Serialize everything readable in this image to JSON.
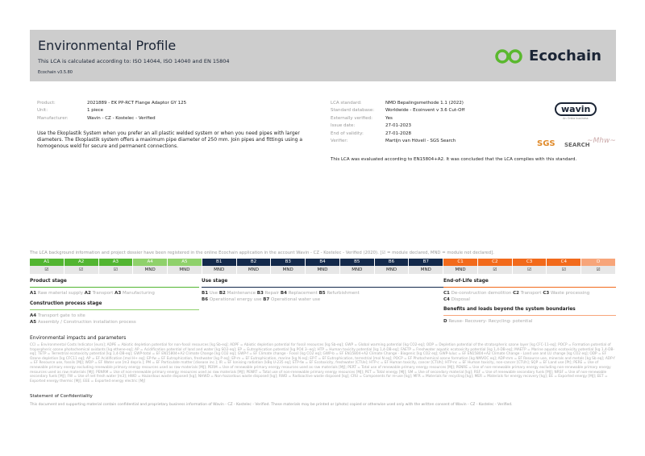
{
  "header": {
    "title": "Environmental Profile",
    "subtitle": "This LCA is calculated according to: ISO 14044, ISO 14040 and EN 15804",
    "version": "Ecochain v3.5.80",
    "logo": "Ecochain"
  },
  "product": {
    "rows": [
      {
        "label": "Product:",
        "value": "2021889 - EK PP-RCT Flange Adaptor GY 125"
      },
      {
        "label": "Unit:",
        "value": "1 piece"
      },
      {
        "label": "Manufacturer:",
        "value": "Wavin - CZ - Kostelec - Verified"
      }
    ],
    "description": "Use the Ekoplastik System when you prefer an all plastic welded system or when you need pipes with larger diameters. The Ekoplastik system offers a maximum pipe diameter of 250 mm. Join pipes and fittings using a homogenous weld for secure and permanent connections."
  },
  "lca": {
    "rows": [
      {
        "label": "LCA standard:",
        "value": "NMD Bepalingsmethode 1.1 (2022)"
      },
      {
        "label": "Standard database:",
        "value": "Worldwide - Ecoinvent v 3.6 Cut-Off"
      },
      {
        "label": "Externally verified:",
        "value": "Yes"
      },
      {
        "label": "Issue date:",
        "value": "27-01-2023"
      },
      {
        "label": "End of validity:",
        "value": "27-01-2028"
      },
      {
        "label": "Verifier:",
        "value": "Martijn van Hövell - SGS Search"
      }
    ],
    "conclusion": "This LCA was evaluated according to EN15804+A2. It was concluded that the LCA complies with this standard."
  },
  "logos": {
    "wavin": "wavin",
    "wavin_sub": "An Orbia business",
    "sgs": "SGS",
    "search": "SEARCH"
  },
  "note": "The LCA background information and project dossier have been registered in the online Ecochain application in the account Wavin - CZ - Kostelec - Verified (2020). [☑ = module declared, MND = module not declared].",
  "colors": {
    "green": "#52b531",
    "light_green": "#8fd16b",
    "navy": "#13294b",
    "orange": "#f26a1b",
    "light_orange": "#f7a57a"
  },
  "modules": [
    {
      "code": "A1",
      "value": "☑",
      "color": "#52b531"
    },
    {
      "code": "A2",
      "value": "☑",
      "color": "#52b531"
    },
    {
      "code": "A3",
      "value": "☑",
      "color": "#52b531"
    },
    {
      "code": "A4",
      "value": "MND",
      "color": "#8fd16b"
    },
    {
      "code": "A5",
      "value": "MND",
      "color": "#8fd16b"
    },
    {
      "code": "B1",
      "value": "MND",
      "color": "#13294b"
    },
    {
      "code": "B2",
      "value": "MND",
      "color": "#13294b"
    },
    {
      "code": "B3",
      "value": "MND",
      "color": "#13294b"
    },
    {
      "code": "B4",
      "value": "MND",
      "color": "#13294b"
    },
    {
      "code": "B5",
      "value": "MND",
      "color": "#13294b"
    },
    {
      "code": "B6",
      "value": "MND",
      "color": "#13294b"
    },
    {
      "code": "B7",
      "value": "MND",
      "color": "#13294b"
    },
    {
      "code": "C1",
      "value": "MND",
      "color": "#f26a1b"
    },
    {
      "code": "C2",
      "value": "☑",
      "color": "#f26a1b"
    },
    {
      "code": "C3",
      "value": "☑",
      "color": "#f26a1b"
    },
    {
      "code": "C4",
      "value": "☑",
      "color": "#f26a1b"
    },
    {
      "code": "D",
      "value": "☑",
      "color": "#f7a57a"
    }
  ],
  "stages": {
    "product": {
      "title": "Product stage",
      "items": [
        [
          "A1",
          "Raw material supply"
        ],
        [
          "A2",
          "Transport"
        ],
        [
          "A3",
          "Manufacturing"
        ]
      ]
    },
    "construction": {
      "title": "Construction process stage",
      "items": [
        [
          "A4",
          "Transport gate to site"
        ],
        [
          "A5",
          "Assembly / Construction installation process"
        ]
      ]
    },
    "use": {
      "title": "Use stage",
      "items": [
        [
          "B1",
          "Use"
        ],
        [
          "B2",
          "Maintenance"
        ],
        [
          "B3",
          "Repair"
        ],
        [
          "B4",
          "Replacement"
        ],
        [
          "B5",
          "Refurbishment"
        ],
        [
          "B6",
          "Operational energy use"
        ],
        [
          "B7",
          "Operational water use"
        ]
      ]
    },
    "eol": {
      "title": "End-of-Life stage",
      "items": [
        [
          "C1",
          "De-construction demolition"
        ],
        [
          "C2",
          "Transport"
        ],
        [
          "C3",
          "Waste processing"
        ],
        [
          "C4",
          "Disposal"
        ]
      ]
    },
    "benefits": {
      "title": "Benefits and loads beyond the system boundaries",
      "items": [
        [
          "D",
          "Reuse- Recovery- Recycling- potential"
        ]
      ]
    }
  },
  "env": {
    "title": "Environmental impacts and parameters",
    "text": "CCI = Environmental Costs Indicator [euro]; ADPE = Abiotic depletion potential for non-fossil resources [kg Sb-eq]; ADPF = Abiotic depletion potential for fossil resources [kg Sb-eq]; GWP = Global warming potential [kg CO2-eq]; ODP = Depletion potential of the stratospheric ozone layer [kg CFC-11-eq]; POCP = Formation potential of tropospheric ozone photochemical oxidants [kg ethene-eq]; AP = Acidification potential of land and water [kg SO2-eq]; EP = Eutrophication potential [kg PO4 3--eq]; HTP = Human toxicity potential [kg 1,4-DB-eq]; FAETP = Freshwater aquatic ecotoxicity potential [kg 1,4-DB-eq]; MAETP = Marine aquatic ecotoxicity potential [kg 1,4-DB-eq]; TETP = Terrestrial ecotoxicity potential [kg 1,4-DB-eq]; GWP-total = EF EN15804+A2 Climate Change [kg CO2 eq]; GWP-f = EF Climate change - Fossil [kg CO2 eq]; GWP-b = EF EN15804+A2 Climate Change - Biogenic [kg CO2 eq]; GWP-luluc = EF EN15804+A2 Climate Change - Land use and LU change [kg CO2 eq]; ODP = EF Ozone depletion [kg CFC11 eq]; AP = EF Acidification [mol H+ eq]; EP-fw = EF Eutrophication, freshwater [kg P eq]; EP-m = EF Eutrophication, marine [kg N eq]; EP-T = EF Eutrophication, terrestrial [mol N eq]; POCP = EF Photochemical ozone formation [kg NMVOC eq]; ADP-mm = EF Resource use, minerals and metals [kg Sb eq]; ADP-f = EF Resource use, fossils [MJ]; WDP = EF Water use [m3 depriv.]; PM = EF Particulate matter [disease inc.]; IR = EF Ionising radiation [kBq U-235 eq]; ETP-fw = EF Ecotoxicity, freshwater [CTUe]; HTP-c = EF Human toxicity, cancer [CTUh]; HTP-nc = EF Human toxicity, non-cancer [CTUh]; SQP = EF Land use [Pt]; PERE = Use of renewable primary energy excluding renewable primary energy resources used as raw materials [MJ]; PERM = Use of renewable primary energy resources used as raw materials [MJ]; PERT = Total use of renewable primary energy resources [MJ]; PENRE = Use of non-renewable primary energy excluding non-renewable primary energy resources used as raw materials [MJ]; PENRM = Use of non-renewable primary energy resources used as raw materials [MJ]; PENRT = Total use of non-renewable primary energy resources [MJ]; PET = Total energy [MJ]; SM = Use of secondary material [kg]; RSF = Use of renewable secondary fuels [MJ]; NRSF = Use of non-renewable secondary fuels [MJ]; FW = Use of net fresh water [m3]; HWD = Hazardous waste disposed [kg]; NHWD = Non-hazardous waste disposed [kg]; RWD = Radioactive waste disposed [kg]; CRU = Components for re-use [kg]; MFR = Materials for recycling [kg]; MER = Materials for energy recovery [kg]; EE = Exported energy [MJ]; EET = Exported energy thermic [MJ]; EEE = Exported energy electric [MJ]"
  },
  "confidentiality": {
    "title": "Statement of Confidentiality",
    "text": "This document and supporting material contain confidential and proprietary business information of Wavin - CZ - Kostelec - Verified. These materials may be printed or (photo) copied or otherwise used only with the written consent of Wavin - CZ - Kostelec - Verified."
  }
}
